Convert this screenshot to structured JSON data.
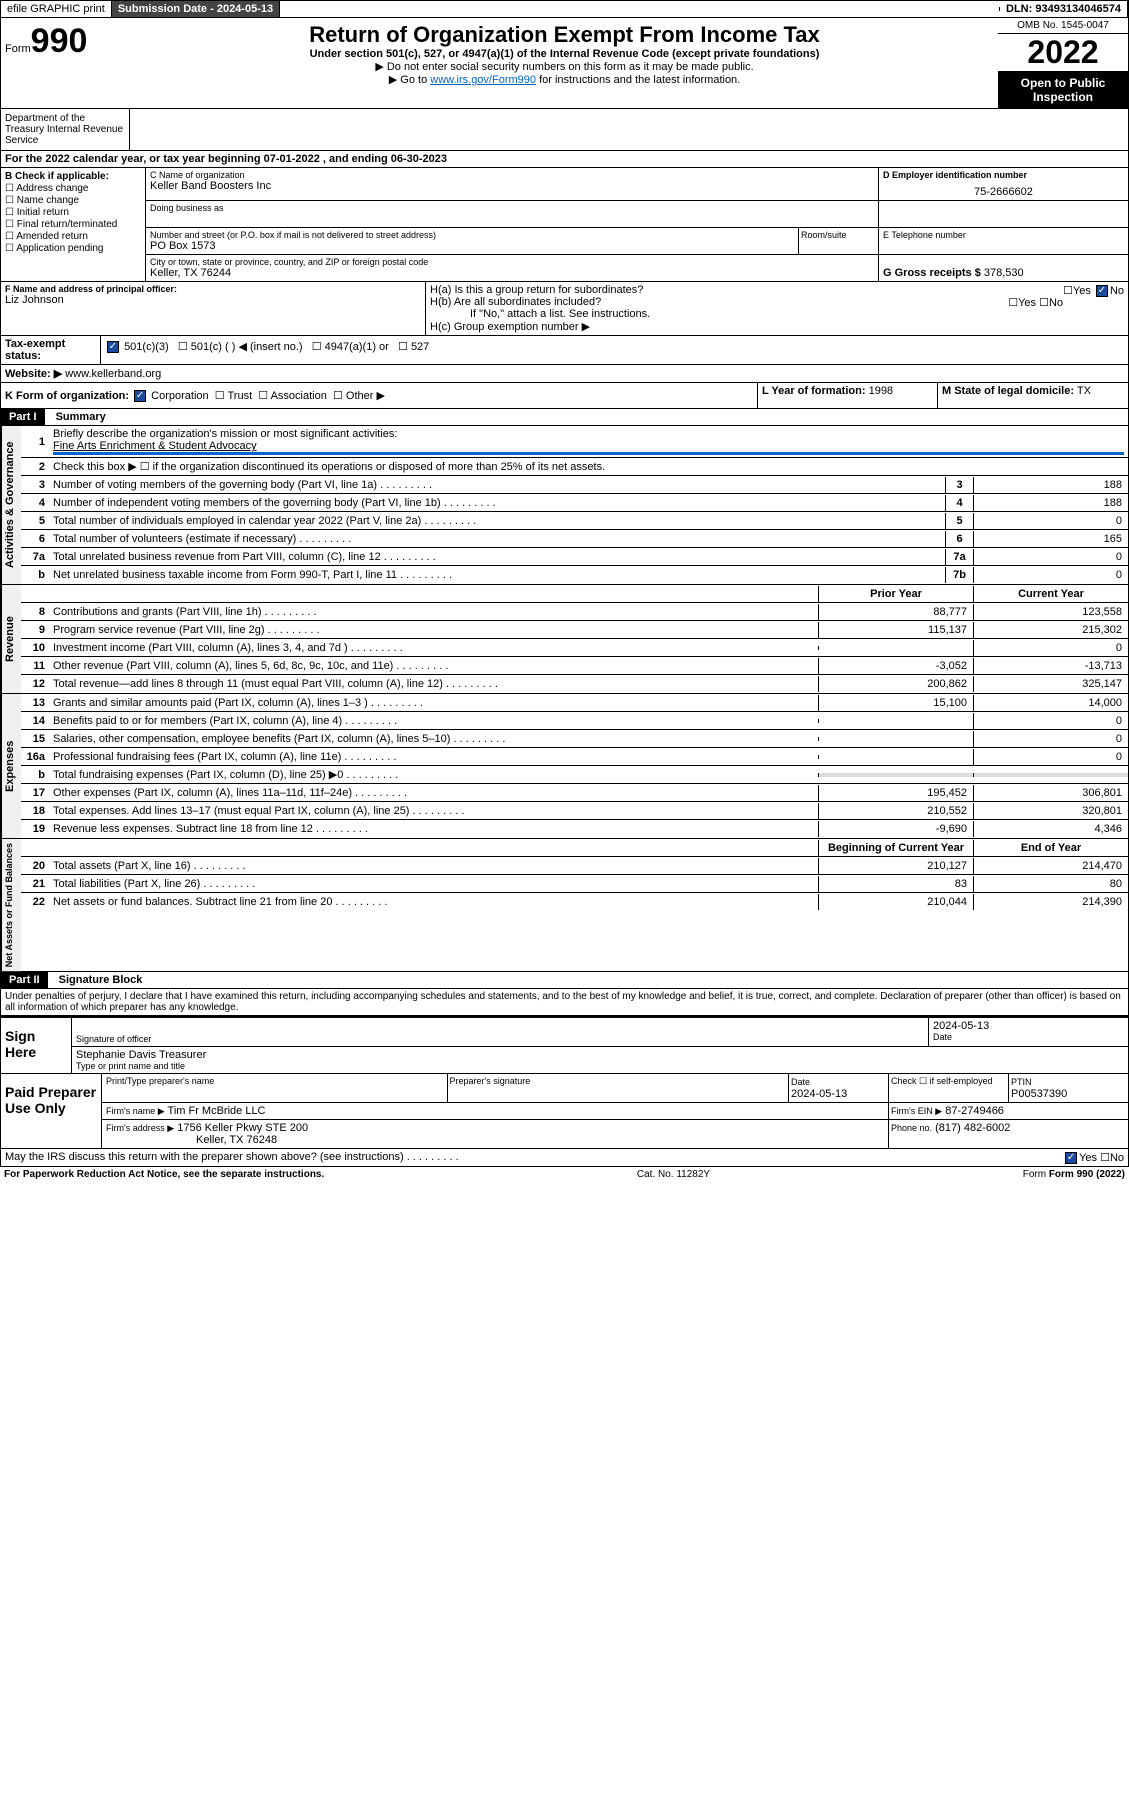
{
  "topbar": {
    "efile": "efile GRAPHIC print",
    "submission_label": "Submission Date - 2024-05-13",
    "dln": "DLN: 93493134046574"
  },
  "header": {
    "form_label": "Form",
    "form_num": "990",
    "title": "Return of Organization Exempt From Income Tax",
    "subtitle": "Under section 501(c), 527, or 4947(a)(1) of the Internal Revenue Code (except private foundations)",
    "note1": "▶ Do not enter social security numbers on this form as it may be made public.",
    "note2_pre": "▶ Go to ",
    "note2_link": "www.irs.gov/Form990",
    "note2_post": " for instructions and the latest information.",
    "omb": "OMB No. 1545-0047",
    "year": "2022",
    "open": "Open to Public Inspection",
    "dept": "Department of the Treasury Internal Revenue Service"
  },
  "periodA": "For the 2022 calendar year, or tax year beginning 07-01-2022   , and ending 06-30-2023",
  "checkB": {
    "header": "B Check if applicable:",
    "opts": [
      "Address change",
      "Name change",
      "Initial return",
      "Final return/terminated",
      "Amended return",
      "Application pending"
    ]
  },
  "boxC": {
    "label": "C Name of organization",
    "name": "Keller Band Boosters Inc",
    "dba_label": "Doing business as",
    "addr_label": "Number and street (or P.O. box if mail is not delivered to street address)",
    "room": "Room/suite",
    "addr": "PO Box 1573",
    "city_label": "City or town, state or province, country, and ZIP or foreign postal code",
    "city": "Keller, TX  76244"
  },
  "boxD": {
    "label": "D Employer identification number",
    "val": "75-2666602"
  },
  "boxE": {
    "label": "E Telephone number"
  },
  "boxG": {
    "label": "G Gross receipts $",
    "val": "378,530"
  },
  "boxF": {
    "label": "F  Name and address of principal officer:",
    "name": "Liz Johnson"
  },
  "boxH": {
    "a": "H(a)  Is this a group return for subordinates?",
    "b": "H(b)  Are all subordinates included?",
    "note": "If \"No,\" attach a list. See instructions.",
    "c": "H(c)  Group exemption number ▶",
    "yes": "Yes",
    "no": "No"
  },
  "boxI": {
    "label": "Tax-exempt status:",
    "opts": [
      "501(c)(3)",
      "501(c) (  ) ◀ (insert no.)",
      "4947(a)(1) or",
      "527"
    ]
  },
  "boxJ": {
    "label": "Website: ▶",
    "val": "www.kellerband.org"
  },
  "boxK": {
    "label": "K Form of organization:",
    "opts": [
      "Corporation",
      "Trust",
      "Association",
      "Other ▶"
    ]
  },
  "boxL": {
    "label": "L Year of formation:",
    "val": "1998"
  },
  "boxM": {
    "label": "M State of legal domicile:",
    "val": "TX"
  },
  "part1": {
    "title": "Part I",
    "name": "Summary",
    "l1": "Briefly describe the organization's mission or most significant activities:",
    "mission": "Fine Arts Enrichment & Student Advocacy",
    "l2": "Check this box ▶ ☐  if the organization discontinued its operations or disposed of more than 25% of its net assets.",
    "gov_label": "Activities & Governance",
    "lines_gov": [
      {
        "n": "3",
        "t": "Number of voting members of the governing body (Part VI, line 1a)",
        "box": "3",
        "v": "188"
      },
      {
        "n": "4",
        "t": "Number of independent voting members of the governing body (Part VI, line 1b)",
        "box": "4",
        "v": "188"
      },
      {
        "n": "5",
        "t": "Total number of individuals employed in calendar year 2022 (Part V, line 2a)",
        "box": "5",
        "v": "0"
      },
      {
        "n": "6",
        "t": "Total number of volunteers (estimate if necessary)",
        "box": "6",
        "v": "165"
      },
      {
        "n": "7a",
        "t": "Total unrelated business revenue from Part VIII, column (C), line 12",
        "box": "7a",
        "v": "0"
      },
      {
        "n": "b",
        "t": "Net unrelated business taxable income from Form 990-T, Part I, line 11",
        "box": "7b",
        "v": "0"
      }
    ],
    "col_prior": "Prior Year",
    "col_curr": "Current Year",
    "rev_label": "Revenue",
    "lines_rev": [
      {
        "n": "8",
        "t": "Contributions and grants (Part VIII, line 1h)",
        "p": "88,777",
        "c": "123,558"
      },
      {
        "n": "9",
        "t": "Program service revenue (Part VIII, line 2g)",
        "p": "115,137",
        "c": "215,302"
      },
      {
        "n": "10",
        "t": "Investment income (Part VIII, column (A), lines 3, 4, and 7d )",
        "p": "",
        "c": "0"
      },
      {
        "n": "11",
        "t": "Other revenue (Part VIII, column (A), lines 5, 6d, 8c, 9c, 10c, and 11e)",
        "p": "-3,052",
        "c": "-13,713"
      },
      {
        "n": "12",
        "t": "Total revenue—add lines 8 through 11 (must equal Part VIII, column (A), line 12)",
        "p": "200,862",
        "c": "325,147"
      }
    ],
    "exp_label": "Expenses",
    "lines_exp": [
      {
        "n": "13",
        "t": "Grants and similar amounts paid (Part IX, column (A), lines 1–3 )",
        "p": "15,100",
        "c": "14,000"
      },
      {
        "n": "14",
        "t": "Benefits paid to or for members (Part IX, column (A), line 4)",
        "p": "",
        "c": "0"
      },
      {
        "n": "15",
        "t": "Salaries, other compensation, employee benefits (Part IX, column (A), lines 5–10)",
        "p": "",
        "c": "0"
      },
      {
        "n": "16a",
        "t": "Professional fundraising fees (Part IX, column (A), line 11e)",
        "p": "",
        "c": "0"
      },
      {
        "n": "b",
        "t": "Total fundraising expenses (Part IX, column (D), line 25) ▶0",
        "p": "",
        "c": "",
        "shaded": true
      },
      {
        "n": "17",
        "t": "Other expenses (Part IX, column (A), lines 11a–11d, 11f–24e)",
        "p": "195,452",
        "c": "306,801"
      },
      {
        "n": "18",
        "t": "Total expenses. Add lines 13–17 (must equal Part IX, column (A), line 25)",
        "p": "210,552",
        "c": "320,801"
      },
      {
        "n": "19",
        "t": "Revenue less expenses. Subtract line 18 from line 12",
        "p": "-9,690",
        "c": "4,346"
      }
    ],
    "na_label": "Net Assets or Fund Balances",
    "col_begin": "Beginning of Current Year",
    "col_end": "End of Year",
    "lines_na": [
      {
        "n": "20",
        "t": "Total assets (Part X, line 16)",
        "p": "210,127",
        "c": "214,470"
      },
      {
        "n": "21",
        "t": "Total liabilities (Part X, line 26)",
        "p": "83",
        "c": "80"
      },
      {
        "n": "22",
        "t": "Net assets or fund balances. Subtract line 21 from line 20",
        "p": "210,044",
        "c": "214,390"
      }
    ]
  },
  "part2": {
    "title": "Part II",
    "name": "Signature Block",
    "decl": "Under penalties of perjury, I declare that I have examined this return, including accompanying schedules and statements, and to the best of my knowledge and belief, it is true, correct, and complete. Declaration of preparer (other than officer) is based on all information of which preparer has any knowledge.",
    "sign": "Sign Here",
    "sig_officer": "Signature of officer",
    "date_label": "Date",
    "sig_date": "2024-05-13",
    "officer_name": "Stephanie Davis Treasurer",
    "type_label": "Type or print name and title",
    "paid": "Paid Preparer Use Only",
    "prep_name_label": "Print/Type preparer's name",
    "prep_sig_label": "Preparer's signature",
    "prep_date_label": "Date",
    "prep_date": "2024-05-13",
    "check_if": "Check ☐ if self-employed",
    "ptin_label": "PTIN",
    "ptin": "P00537390",
    "firm_name_label": "Firm's name   ▶",
    "firm_name": "Tim Fr McBride LLC",
    "firm_ein_label": "Firm's EIN ▶",
    "firm_ein": "87-2749466",
    "firm_addr_label": "Firm's address ▶",
    "firm_addr": "1756 Keller Pkwy STE 200",
    "firm_city": "Keller, TX  76248",
    "phone_label": "Phone no.",
    "phone": "(817) 482-6002",
    "discuss": "May the IRS discuss this return with the preparer shown above? (see instructions)"
  },
  "footer": {
    "pra": "For Paperwork Reduction Act Notice, see the separate instructions.",
    "cat": "Cat. No. 11282Y",
    "form": "Form 990 (2022)"
  }
}
